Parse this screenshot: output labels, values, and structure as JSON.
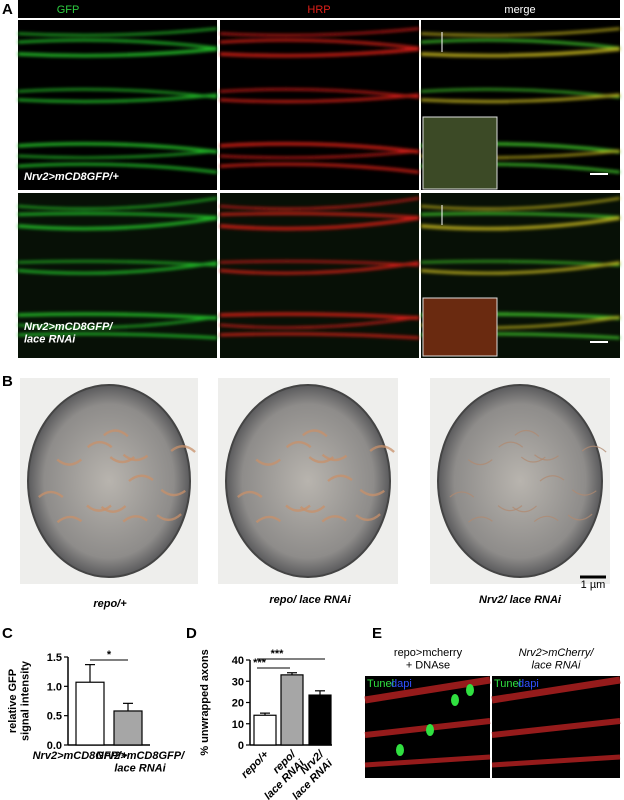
{
  "panel_a": {
    "label": "A",
    "columns": [
      "GFP",
      "HRP",
      "merge"
    ],
    "row_labels": [
      "Nrv2>mCD8GFP/+",
      "Nrv2>mCD8GFP/\nlace RNAi"
    ]
  },
  "panel_b": {
    "label": "B",
    "captions": [
      "repo/+",
      "repo/ lace RNAi",
      "Nrv2/ lace RNAi"
    ],
    "scale_bar": "1 µm"
  },
  "chart_data": [
    {
      "type": "bar",
      "label": "C",
      "y_label": "relative GFP\nsignal intensity",
      "categories": [
        "Nrv2>mCD8GFP/+",
        "Nrv2>mCD8GFP/\nlace RNAi"
      ],
      "values": [
        1.07,
        0.58
      ],
      "errors": [
        0.3,
        0.13
      ],
      "colors": [
        "#ffffff",
        "#a6a6a6"
      ],
      "ylim": [
        0,
        1.5
      ],
      "yticks": [
        {
          "value": 0,
          "label": "0.0"
        },
        {
          "value": 0.5,
          "label": "0.5"
        },
        {
          "value": 1,
          "label": "1.0"
        },
        {
          "value": 1.5,
          "label": "1.5"
        }
      ],
      "annotations": [
        "*"
      ]
    },
    {
      "type": "bar",
      "label": "D",
      "y_label": "% unwrapped axons",
      "categories": [
        "repo/+",
        "repo/\nlace RNAi",
        "Nrv2/\nlace RNAi"
      ],
      "values": [
        14,
        33,
        23.5
      ],
      "errors": [
        1,
        1,
        2
      ],
      "colors": [
        "#ffffff",
        "#a6a6a6",
        "#000000"
      ],
      "ylim": [
        0,
        40
      ],
      "yticks": [
        0,
        10,
        20,
        30,
        40
      ],
      "annotations": [
        "***",
        "***"
      ]
    }
  ],
  "panel_e": {
    "label": "E",
    "titles": [
      "repo>mcherry\n+ DNAse",
      "Nrv2>mCherry/\nlace RNAi"
    ],
    "stain_labels": [
      "Tunel",
      "dapi"
    ]
  }
}
